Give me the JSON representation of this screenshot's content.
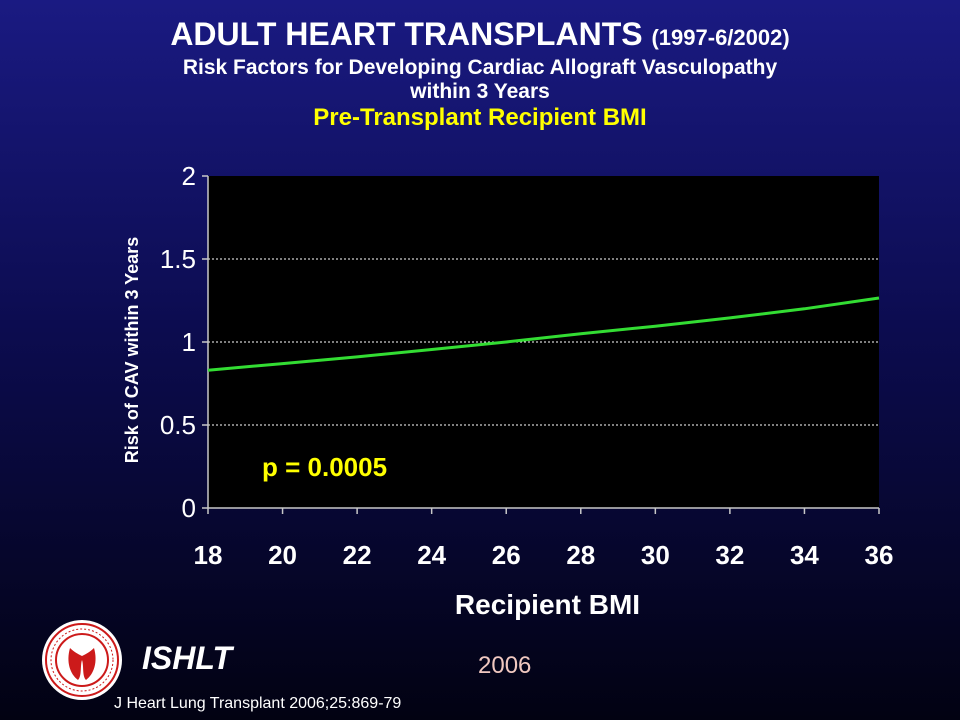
{
  "header": {
    "title": "ADULT HEART TRANSPLANTS",
    "title_years": "(1997-6/2002)",
    "subtitle_line1": "Risk Factors for Developing Cardiac Allograft Vasculopathy",
    "subtitle_line2": "within 3 Years"
  },
  "chart_data": {
    "type": "line",
    "title": "Pre-Transplant Recipient BMI",
    "xlabel": "Recipient BMI",
    "ylabel": "Risk of CAV within 3 Years",
    "xlim": [
      18,
      36
    ],
    "ylim": [
      0,
      2
    ],
    "x_ticks": [
      "18",
      "20",
      "22",
      "24",
      "26",
      "28",
      "30",
      "32",
      "34",
      "36"
    ],
    "y_ticks": [
      "0",
      "0.5",
      "1",
      "1.5",
      "2"
    ],
    "grid": "horizontal dashed at 0.5, 1, 1.5",
    "series": [
      {
        "x": [
          18,
          20,
          22,
          24,
          26,
          28,
          30,
          32,
          34,
          36
        ],
        "y": [
          0.83,
          0.87,
          0.91,
          0.955,
          1.0,
          1.05,
          1.095,
          1.145,
          1.2,
          1.265
        ]
      }
    ],
    "annotation": "p = 0.0005"
  },
  "footer": {
    "org": "ISHLT",
    "year": "2006",
    "citation": "J Heart Lung Transplant 2006;25:869-79"
  },
  "colors": {
    "line": "#33dd33",
    "annotation": "#ffff00",
    "plot_bg": "#000000",
    "title_chart": "#ffff00"
  },
  "icons": {
    "logo": "ishlt-seal-icon"
  }
}
